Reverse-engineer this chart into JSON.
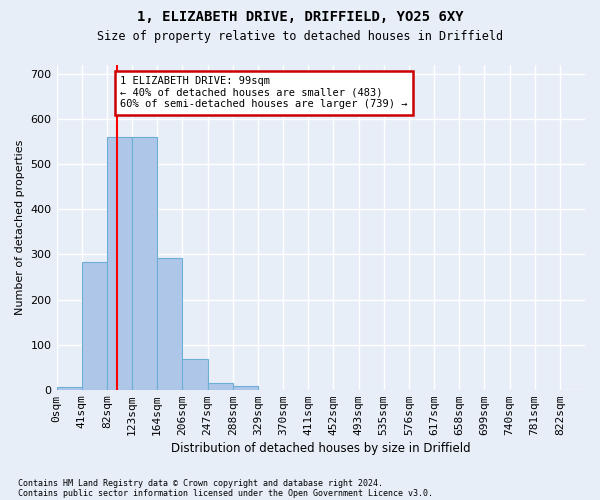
{
  "title_line1": "1, ELIZABETH DRIVE, DRIFFIELD, YO25 6XY",
  "title_line2": "Size of property relative to detached houses in Driffield",
  "xlabel": "Distribution of detached houses by size in Driffield",
  "ylabel": "Number of detached properties",
  "bin_labels": [
    "0sqm",
    "41sqm",
    "82sqm",
    "123sqm",
    "164sqm",
    "206sqm",
    "247sqm",
    "288sqm",
    "329sqm",
    "370sqm",
    "411sqm",
    "452sqm",
    "493sqm",
    "535sqm",
    "576sqm",
    "617sqm",
    "658sqm",
    "699sqm",
    "740sqm",
    "781sqm",
    "822sqm"
  ],
  "bar_values": [
    7,
    283,
    560,
    560,
    293,
    67,
    14,
    9,
    0,
    0,
    0,
    0,
    0,
    0,
    0,
    0,
    0,
    0,
    0,
    0
  ],
  "bar_color": "#aec7e8",
  "bar_edgecolor": "#6baed6",
  "red_line_x": 2,
  "annotation_text": "1 ELIZABETH DRIVE: 99sqm\n← 40% of detached houses are smaller (483)\n60% of semi-detached houses are larger (739) →",
  "annotation_box_color": "#ffffff",
  "annotation_box_edgecolor": "#cc0000",
  "ylim": [
    0,
    720
  ],
  "yticks": [
    0,
    100,
    200,
    300,
    400,
    500,
    600,
    700
  ],
  "footer_line1": "Contains HM Land Registry data © Crown copyright and database right 2024.",
  "footer_line2": "Contains public sector information licensed under the Open Government Licence v3.0.",
  "background_color": "#e8eef8",
  "grid_color": "#ffffff",
  "bin_width": 1
}
